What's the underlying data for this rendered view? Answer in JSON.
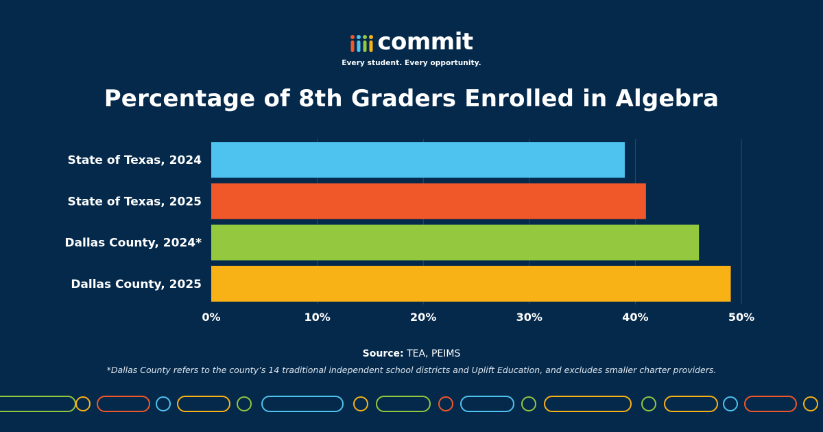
{
  "brand": {
    "name": "commit",
    "tagline": "Every student. Every opportunity.",
    "mark_colors": [
      "#f0582a",
      "#4fc3f0",
      "#93c83f",
      "#f9b216"
    ]
  },
  "source": {
    "label": "Source:",
    "text": "TEA, PEIMS"
  },
  "footnote": "*Dallas County refers to the county’s 14 traditional independent school districts and Uplift Education, and excludes smaller charter providers.",
  "chart_data": {
    "type": "bar",
    "orientation": "horizontal",
    "title": "Percentage of 8th Graders Enrolled in Algebra",
    "categories": [
      "State of Texas, 2024",
      "State of Texas, 2025",
      "Dallas County, 2024*",
      "Dallas County, 2025"
    ],
    "values": [
      39,
      41,
      46,
      49
    ],
    "colors": [
      "#4fc3f0",
      "#f0582a",
      "#93c83f",
      "#f9b216"
    ],
    "xlim": [
      0,
      50
    ],
    "ticks": [
      0,
      10,
      20,
      30,
      40,
      50
    ],
    "tick_labels": [
      "0%",
      "10%",
      "20%",
      "30%",
      "40%",
      "50%"
    ],
    "xlabel": "",
    "ylabel": "",
    "grid": true
  },
  "decoration": {
    "colors": [
      "#93c83f",
      "#f9b216",
      "#f0582a",
      "#4fc3f0"
    ]
  }
}
